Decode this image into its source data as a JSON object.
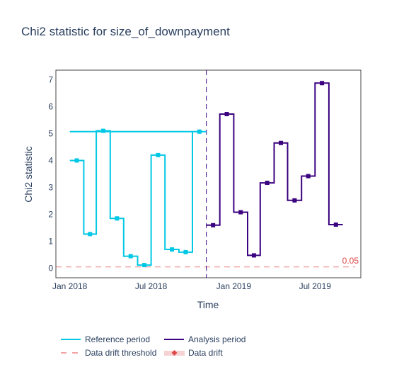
{
  "chart_data": {
    "type": "line",
    "title": "Chi2 statistic for size_of_downpayment",
    "xlabel": "Time",
    "ylabel": "Chi2 statistic",
    "ylim": [
      -0.35,
      7.35
    ],
    "xlim": [
      "2017-12-01",
      "2019-10-11"
    ],
    "line_shape": "step",
    "x_ticks": [
      {
        "date": "2018-01-01",
        "label": "Jan 2018"
      },
      {
        "date": "2018-07-01",
        "label": "Jul 2018"
      },
      {
        "date": "2019-01-01",
        "label": "Jan 2019"
      },
      {
        "date": "2019-07-01",
        "label": "Jul 2019"
      }
    ],
    "y_ticks": [
      0,
      1,
      2,
      3,
      4,
      5,
      6,
      7
    ],
    "series": [
      {
        "name": "Reference period",
        "color": "#00c8e5",
        "points": [
          {
            "start": "2018-01-01",
            "end": "2018-02-01",
            "value": 4.0
          },
          {
            "start": "2018-02-01",
            "end": "2018-03-01",
            "value": 1.27
          },
          {
            "start": "2018-03-01",
            "end": "2018-04-01",
            "value": 5.1
          },
          {
            "start": "2018-04-01",
            "end": "2018-05-01",
            "value": 1.85
          },
          {
            "start": "2018-05-01",
            "end": "2018-06-01",
            "value": 0.45
          },
          {
            "start": "2018-06-01",
            "end": "2018-07-01",
            "value": 0.12
          },
          {
            "start": "2018-07-01",
            "end": "2018-08-01",
            "value": 4.2
          },
          {
            "start": "2018-08-01",
            "end": "2018-09-01",
            "value": 0.7
          },
          {
            "start": "2018-09-01",
            "end": "2018-10-01",
            "value": 0.6
          },
          {
            "start": "2018-10-01",
            "end": "2018-11-01",
            "value": 5.07
          }
        ],
        "mean_line": {
          "start": "2018-01-01",
          "end": "2018-10-01",
          "value": 5.07
        }
      },
      {
        "name": "Analysis period",
        "color": "#3b0280",
        "points": [
          {
            "start": "2018-11-01",
            "end": "2018-12-01",
            "value": 1.6
          },
          {
            "start": "2018-12-01",
            "end": "2019-01-01",
            "value": 5.72
          },
          {
            "start": "2019-01-01",
            "end": "2019-02-01",
            "value": 2.08
          },
          {
            "start": "2019-02-01",
            "end": "2019-03-01",
            "value": 0.48
          },
          {
            "start": "2019-03-01",
            "end": "2019-04-01",
            "value": 3.17
          },
          {
            "start": "2019-04-01",
            "end": "2019-05-01",
            "value": 4.65
          },
          {
            "start": "2019-05-01",
            "end": "2019-06-01",
            "value": 2.52
          },
          {
            "start": "2019-06-01",
            "end": "2019-07-01",
            "value": 3.42
          },
          {
            "start": "2019-07-01",
            "end": "2019-08-01",
            "value": 6.87
          },
          {
            "start": "2019-08-01",
            "end": "2019-09-01",
            "value": 1.62
          }
        ]
      }
    ],
    "period_divider": "2018-11-01",
    "threshold": {
      "name": "Data drift threshold",
      "value": 0.05,
      "label": "0.05",
      "color": "#e04a4a"
    },
    "alert": {
      "name": "Data drift",
      "color": "#e04a4a"
    },
    "grid": false,
    "legend_position": "bottom-left"
  }
}
